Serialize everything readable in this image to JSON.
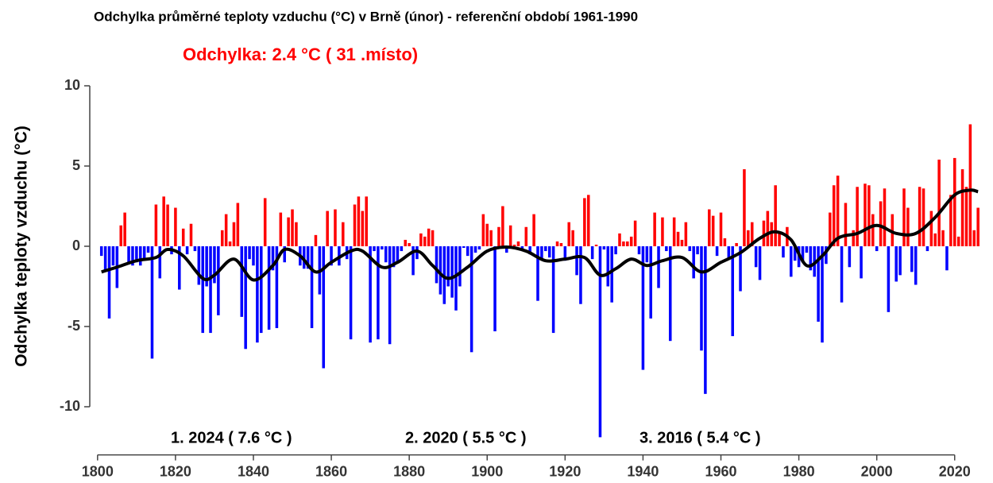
{
  "chart_data": {
    "type": "bar",
    "title": "Odchylka průměrné teploty vzduchu (°C) v Brně (únor) - referenční období 1961-1990",
    "ylabel": "Odchylka teploty vzduchu (°C)",
    "annotations": [
      "Odchylka: 2.4 °C  ( 31 .místo)",
      "1. 2024 ( 7.6 °C )",
      "2. 2020 ( 5.5 °C )",
      "3. 2016 ( 5.4 °C )"
    ],
    "annotation_colors": [
      "#ff0000",
      "#000000",
      "#000000",
      "#000000"
    ],
    "positive_color": "#ff0000",
    "negative_color": "#0000ff",
    "xlim": [
      1798,
      2028
    ],
    "xticks": [
      1800,
      1820,
      1840,
      1860,
      1880,
      1900,
      1920,
      1940,
      1960,
      1980,
      2000,
      2020
    ],
    "ylim": [
      -13,
      13
    ],
    "yticks": [
      -10,
      -5,
      0,
      5,
      10
    ],
    "grid": false,
    "x": [
      1801,
      1802,
      1803,
      1804,
      1805,
      1806,
      1807,
      1808,
      1809,
      1810,
      1811,
      1812,
      1813,
      1814,
      1815,
      1816,
      1817,
      1818,
      1819,
      1820,
      1821,
      1822,
      1823,
      1824,
      1825,
      1826,
      1827,
      1828,
      1829,
      1830,
      1831,
      1832,
      1833,
      1834,
      1835,
      1836,
      1837,
      1838,
      1839,
      1840,
      1841,
      1842,
      1843,
      1844,
      1845,
      1846,
      1847,
      1848,
      1849,
      1850,
      1851,
      1852,
      1853,
      1854,
      1855,
      1856,
      1857,
      1858,
      1859,
      1860,
      1861,
      1862,
      1863,
      1864,
      1865,
      1866,
      1867,
      1868,
      1869,
      1870,
      1871,
      1872,
      1873,
      1874,
      1875,
      1876,
      1877,
      1878,
      1879,
      1880,
      1881,
      1882,
      1883,
      1884,
      1885,
      1886,
      1887,
      1888,
      1889,
      1890,
      1891,
      1892,
      1893,
      1894,
      1895,
      1896,
      1897,
      1898,
      1899,
      1900,
      1901,
      1902,
      1903,
      1904,
      1905,
      1906,
      1907,
      1908,
      1909,
      1910,
      1911,
      1912,
      1913,
      1914,
      1915,
      1916,
      1917,
      1918,
      1919,
      1920,
      1921,
      1922,
      1923,
      1924,
      1925,
      1926,
      1927,
      1928,
      1929,
      1930,
      1931,
      1932,
      1933,
      1934,
      1935,
      1936,
      1937,
      1938,
      1939,
      1940,
      1941,
      1942,
      1943,
      1944,
      1945,
      1946,
      1947,
      1948,
      1949,
      1950,
      1951,
      1952,
      1953,
      1954,
      1955,
      1956,
      1957,
      1958,
      1959,
      1960,
      1961,
      1962,
      1963,
      1964,
      1965,
      1966,
      1967,
      1968,
      1969,
      1970,
      1971,
      1972,
      1973,
      1974,
      1975,
      1976,
      1977,
      1978,
      1979,
      1980,
      1981,
      1982,
      1983,
      1984,
      1985,
      1986,
      1987,
      1988,
      1989,
      1990,
      1991,
      1992,
      1993,
      1994,
      1995,
      1996,
      1997,
      1998,
      1999,
      2000,
      2001,
      2002,
      2003,
      2004,
      2005,
      2006,
      2007,
      2008,
      2009,
      2010,
      2011,
      2012,
      2013,
      2014,
      2015,
      2016,
      2017,
      2018,
      2019,
      2020,
      2021,
      2022,
      2023,
      2024,
      2025,
      2026
    ],
    "values": [
      -0.6,
      -1.5,
      -4.5,
      -1.2,
      -2.6,
      1.3,
      2.1,
      -1.0,
      -1.2,
      -1.0,
      -1.2,
      -0.8,
      -0.4,
      -7.0,
      2.6,
      -2.0,
      3.1,
      2.6,
      -0.5,
      2.4,
      -2.7,
      1.1,
      -0.5,
      1.4,
      -0.3,
      -2.4,
      -5.4,
      -2.5,
      -5.4,
      -2.3,
      -4.3,
      1.0,
      2.0,
      0.3,
      1.5,
      2.7,
      -4.4,
      -6.4,
      -0.8,
      -1.2,
      -6.0,
      -5.4,
      3.0,
      -5.2,
      -1.5,
      -5.1,
      2.1,
      -1.0,
      1.8,
      2.3,
      1.5,
      -1.2,
      -1.4,
      -1.4,
      -5.1,
      0.7,
      -3.0,
      -7.6,
      2.2,
      -1.2,
      2.3,
      -1.2,
      1.5,
      -0.8,
      -5.8,
      2.6,
      3.1,
      2.2,
      3.1,
      -6.0,
      -0.3,
      -5.8,
      -0.2,
      -1.0,
      -6.1,
      -1.3,
      -1.0,
      -0.3,
      0.4,
      0.2,
      -1.8,
      -0.8,
      0.8,
      0.6,
      1.1,
      1.0,
      -2.3,
      -3.0,
      -3.6,
      -2.5,
      -3.2,
      -4.0,
      -2.5,
      -0.1,
      -0.6,
      -6.6,
      -0.4,
      -0.2,
      2.0,
      1.4,
      1.0,
      -5.3,
      1.2,
      2.5,
      -0.4,
      1.3,
      0.1,
      0.3,
      -0.3,
      1.2,
      -0.5,
      2.0,
      -3.4,
      -0.8,
      -0.3,
      -0.7,
      -5.4,
      0.3,
      0.2,
      -0.9,
      1.5,
      1.0,
      -1.8,
      -3.6,
      3.0,
      3.2,
      -0.8,
      0.1,
      -11.9,
      -0.2,
      -2.5,
      -3.5,
      -0.5,
      0.8,
      0.3,
      0.3,
      0.6,
      1.6,
      -0.5,
      -7.7,
      -1.0,
      -4.5,
      2.1,
      -2.6,
      1.8,
      -0.3,
      -5.9,
      1.8,
      0.9,
      0.4,
      1.5,
      -0.3,
      -2.0,
      -0.5,
      -6.5,
      -9.2,
      2.3,
      1.9,
      -0.6,
      2.1,
      0.5,
      -0.8,
      -5.6,
      0.2,
      -2.8,
      4.8,
      1.0,
      1.5,
      -1.3,
      -2.1,
      1.6,
      2.2,
      1.5,
      3.8,
      0.9,
      -0.7,
      1.2,
      -1.9,
      -0.9,
      -1.3,
      -1.0,
      -0.4,
      -1.5,
      -1.9,
      -4.7,
      -6.0,
      -1.1,
      2.1,
      3.8,
      4.4,
      -3.5,
      2.7,
      -1.3,
      1.0,
      3.7,
      -2.0,
      3.9,
      3.8,
      2.0,
      -0.3,
      2.8,
      3.6,
      -4.1,
      2.0,
      -2.2,
      -1.8,
      3.6,
      2.4,
      -1.6,
      -2.4,
      3.7,
      3.6,
      -0.3,
      2.2,
      0.8,
      5.4,
      1.0,
      -1.5,
      3.2,
      5.5,
      0.6,
      4.8,
      3.7,
      7.6,
      1.0,
      2.4
    ],
    "smooth": {
      "color": "#000000",
      "x": [
        1801,
        1805,
        1810,
        1815,
        1818,
        1822,
        1827,
        1830,
        1835,
        1840,
        1845,
        1848,
        1852,
        1856,
        1860,
        1865,
        1868,
        1873,
        1877,
        1882,
        1886,
        1890,
        1895,
        1900,
        1905,
        1910,
        1915,
        1920,
        1925,
        1929,
        1933,
        1937,
        1941,
        1945,
        1950,
        1955,
        1960,
        1965,
        1970,
        1974,
        1978,
        1982,
        1986,
        1990,
        1995,
        2000,
        2005,
        2010,
        2015,
        2020,
        2024,
        2026
      ],
      "values": [
        -1.6,
        -1.3,
        -0.9,
        -0.7,
        -0.2,
        -0.6,
        -2.0,
        -1.8,
        -0.8,
        -2.1,
        -1.2,
        -0.2,
        -0.6,
        -1.6,
        -1.0,
        -0.3,
        -0.3,
        -1.3,
        -1.0,
        -0.3,
        -1.2,
        -2.0,
        -1.3,
        -0.3,
        -0.05,
        -0.3,
        -0.9,
        -0.8,
        -0.7,
        -1.8,
        -1.4,
        -0.8,
        -1.2,
        -0.9,
        -0.7,
        -1.6,
        -1.0,
        -0.4,
        0.5,
        0.9,
        0.4,
        -1.2,
        -0.6,
        0.5,
        0.8,
        1.3,
        0.8,
        0.8,
        1.8,
        3.2,
        3.5,
        3.4
      ]
    }
  }
}
